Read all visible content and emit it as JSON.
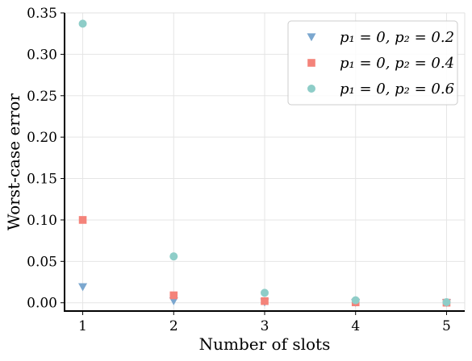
{
  "chart_data": {
    "type": "scatter",
    "xlabel": "Number of slots",
    "ylabel": "Worst-case error",
    "x": [
      1,
      2,
      3,
      4,
      5
    ],
    "xlim": [
      0.8,
      5.2
    ],
    "ylim": [
      -0.01,
      0.35
    ],
    "xticks": [
      "1",
      "2",
      "3",
      "4",
      "5"
    ],
    "yticks": [
      "0.00",
      "0.05",
      "0.10",
      "0.15",
      "0.20",
      "0.25",
      "0.30",
      "0.35"
    ],
    "grid": true,
    "legend_position": "top-right",
    "series": [
      {
        "name": "p₁ = 0, p₂ = 0.2",
        "marker": "triangle-down",
        "color": "#7ba7cf",
        "values": [
          0.019,
          0.002,
          0.0005,
          0.0001,
          0.0
        ]
      },
      {
        "name": "p₁ = 0, p₂ = 0.4",
        "marker": "square",
        "color": "#f4837a",
        "values": [
          0.1,
          0.009,
          0.002,
          0.0005,
          0.0001
        ]
      },
      {
        "name": "p₁ = 0, p₂ = 0.6",
        "marker": "circle",
        "color": "#8ecdc8",
        "values": [
          0.337,
          0.056,
          0.012,
          0.003,
          0.0007
        ]
      }
    ]
  }
}
